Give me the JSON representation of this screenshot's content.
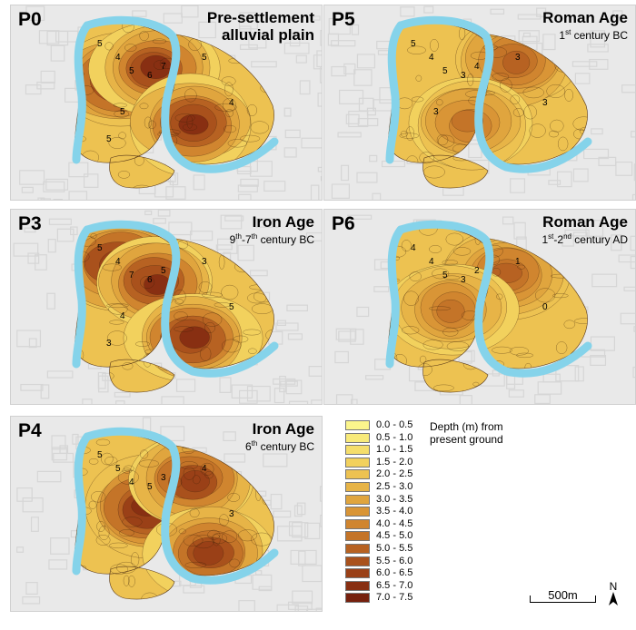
{
  "panels": [
    {
      "id": "P0",
      "title": "Pre-settlement",
      "subtitle": "alluvial plain",
      "subtitle_bold": true,
      "depth_max": 7.2,
      "contour_labels": [
        "5",
        "4",
        "5",
        "6",
        "7",
        "5",
        "4",
        "5",
        "5"
      ]
    },
    {
      "id": "P5",
      "title": "Roman Age",
      "subtitle": "1st century BC",
      "subtitle_bold": false,
      "depth_max": 5.4,
      "contour_labels": [
        "5",
        "4",
        "5",
        "3",
        "4",
        "3",
        "3",
        "3"
      ]
    },
    {
      "id": "P3",
      "title": "Iron Age",
      "subtitle": "9th-7th century BC",
      "subtitle_bold": false,
      "depth_max": 7.1,
      "contour_labels": [
        "5",
        "4",
        "7",
        "6",
        "5",
        "3",
        "5",
        "4",
        "3"
      ]
    },
    {
      "id": "P6",
      "title": "Roman Age",
      "subtitle": "1st-2nd century AD",
      "subtitle_bold": false,
      "depth_max": 5.2,
      "contour_labels": [
        "4",
        "4",
        "5",
        "3",
        "2",
        "1",
        "0"
      ]
    },
    {
      "id": "P4",
      "title": "Iron Age",
      "subtitle": "6th century BC",
      "subtitle_bold": false,
      "depth_max": 6.6,
      "contour_labels": [
        "5",
        "5",
        "4",
        "5",
        "3",
        "4",
        "3"
      ]
    }
  ],
  "legend": {
    "title": "Depth (m) from present ground",
    "classes": [
      {
        "label": "0.0 - 0.5",
        "color": "#fbf58c"
      },
      {
        "label": "0.5 - 1.0",
        "color": "#f8ea7a"
      },
      {
        "label": "1.0 - 1.5",
        "color": "#f5de6b"
      },
      {
        "label": "1.5 - 2.0",
        "color": "#f2d15d"
      },
      {
        "label": "2.0 - 2.5",
        "color": "#edc251"
      },
      {
        "label": "2.5 - 3.0",
        "color": "#e7b447"
      },
      {
        "label": "3.0 - 3.5",
        "color": "#e0a53e"
      },
      {
        "label": "3.5 - 4.0",
        "color": "#d99536"
      },
      {
        "label": "4.0 - 4.5",
        "color": "#d0852f"
      },
      {
        "label": "4.5 - 5.0",
        "color": "#c47428"
      },
      {
        "label": "5.0 - 5.5",
        "color": "#b76222"
      },
      {
        "label": "5.5 - 6.0",
        "color": "#a9511c"
      },
      {
        "label": "6.0 - 6.5",
        "color": "#9a4017"
      },
      {
        "label": "6.5 - 7.0",
        "color": "#882f12"
      },
      {
        "label": "7.0 - 7.5",
        "color": "#76200d"
      }
    ]
  },
  "scale_bar": {
    "label": "500m"
  },
  "north_arrow": {
    "label": "N"
  },
  "colors": {
    "river": "#85d3ea",
    "street_map": "#d6d6d6"
  }
}
